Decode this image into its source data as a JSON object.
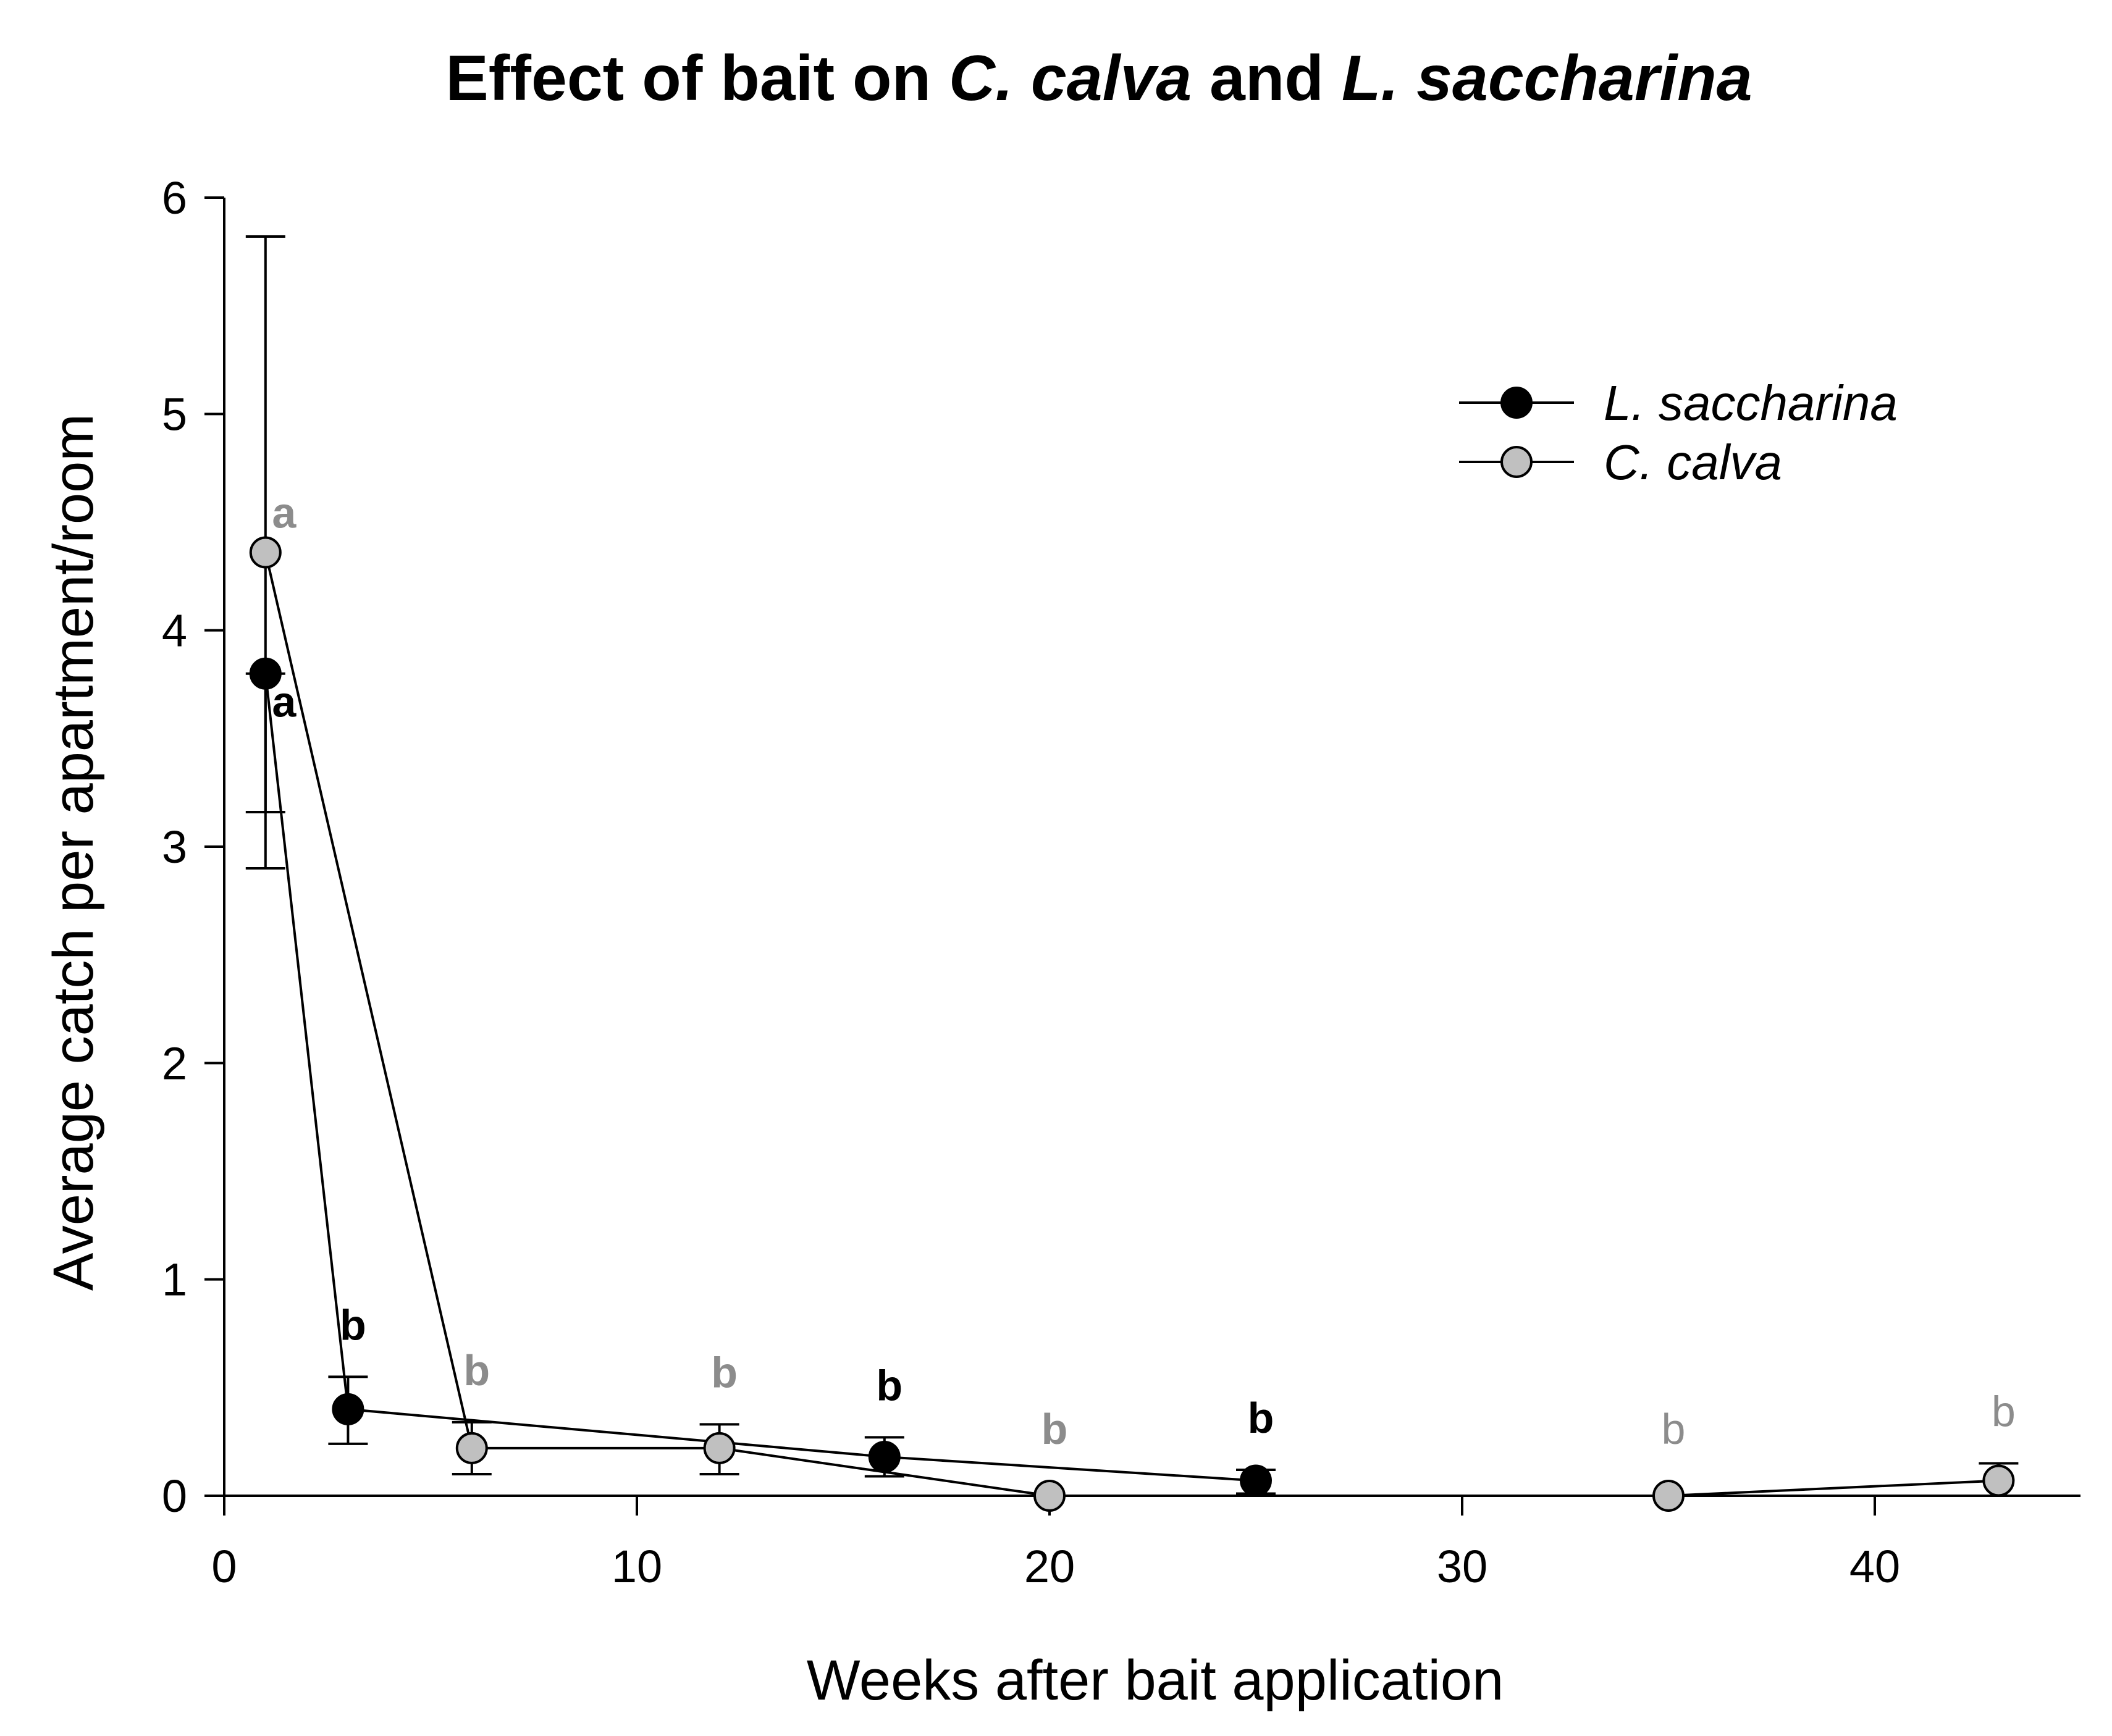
{
  "chart_data": {
    "type": "line",
    "title": {
      "segments": [
        {
          "text": "Effect of bait on ",
          "italic": false
        },
        {
          "text": "C. calva",
          "italic": true
        },
        {
          "text": " and ",
          "italic": false
        },
        {
          "text": "L. saccharina",
          "italic": true
        }
      ]
    },
    "xlabel": "Weeks after bait application",
    "ylabel": "Average catch per apartment/room",
    "xlim": [
      0,
      45
    ],
    "ylim": [
      0,
      6
    ],
    "x_ticks": [
      "0",
      "10",
      "20",
      "30",
      "40"
    ],
    "y_ticks": [
      "0",
      "1",
      "2",
      "3",
      "4",
      "5",
      "6"
    ],
    "grid": false,
    "legend": "top-right",
    "series": [
      {
        "name": "L. saccharina",
        "marker_color": "#000000",
        "label_color": "#000000",
        "points": [
          {
            "x": 1,
            "y": 3.8,
            "err_low": 2.9,
            "err_high": 3.8,
            "label": "a"
          },
          {
            "x": 3,
            "y": 0.4,
            "err_low": 0.24,
            "err_high": 0.55,
            "label": "b"
          },
          {
            "x": 16,
            "y": 0.18,
            "err_low": 0.09,
            "err_high": 0.27,
            "label": "b"
          },
          {
            "x": 25,
            "y": 0.07,
            "err_low": 0.01,
            "err_high": 0.12,
            "label": "b"
          }
        ]
      },
      {
        "name": "C. calva",
        "marker_color": "#c0c0c0",
        "label_color": "#8c8c8c",
        "points": [
          {
            "x": 1,
            "y": 4.36,
            "err_low": 3.16,
            "err_high": 5.82,
            "label": "a"
          },
          {
            "x": 6,
            "y": 0.22,
            "err_low": 0.1,
            "err_high": 0.34,
            "label": "b"
          },
          {
            "x": 12,
            "y": 0.22,
            "err_low": 0.1,
            "err_high": 0.33,
            "label": "b"
          },
          {
            "x": 20,
            "y": 0.0,
            "label": "b"
          },
          {
            "x": 35,
            "y": 0.0,
            "label": "b"
          },
          {
            "x": 43,
            "y": 0.07,
            "err_low": 0.0,
            "err_high": 0.15,
            "label": "b"
          }
        ]
      }
    ]
  }
}
